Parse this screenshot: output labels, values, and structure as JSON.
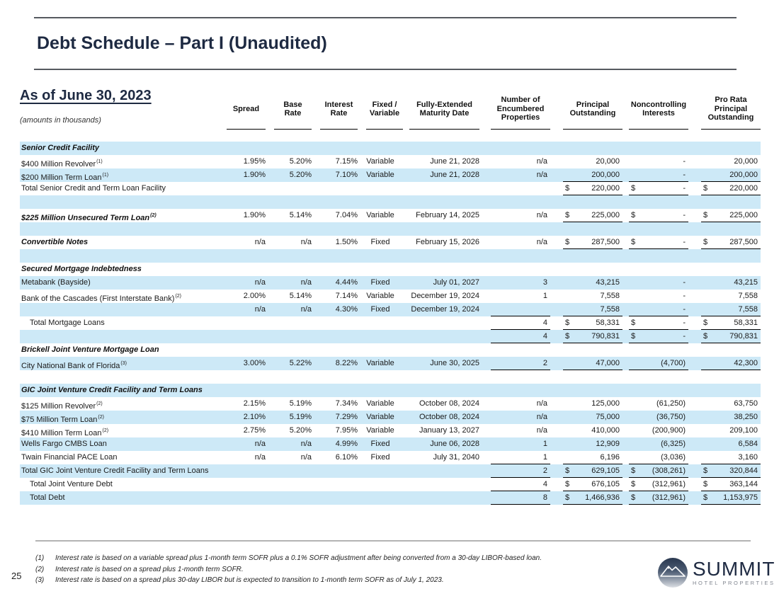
{
  "colors": {
    "row_shade": "#cde9f7",
    "navy": "#1e2a42",
    "rule_dark": "#565a60",
    "rule_light": "#b3b3b3"
  },
  "header": {
    "title": "Debt Schedule – Part I (Unaudited)",
    "as_of": "As of June 30, 2023",
    "amounts_note": "(amounts in thousands)"
  },
  "page_number": "25",
  "logo": {
    "name": "SUMMIT",
    "tagline": "HOTEL PROPERTIES",
    "icon": "mountain-circle-icon"
  },
  "footnotes": [
    {
      "num": "(1)",
      "text": "Interest rate is based on a variable spread plus 1-month term SOFR plus a 0.1% SOFR adjustment after being converted from a 30-day LIBOR-based loan."
    },
    {
      "num": "(2)",
      "text": "Interest rate is based on a spread plus 1-month term SOFR."
    },
    {
      "num": "(3)",
      "text": "Interest rate is based on a spread plus 30-day LIBOR but is expected to transition to 1-month term SOFR as of July 1, 2023."
    }
  ],
  "table": {
    "columns": [
      {
        "key": "spread",
        "width": 55,
        "gap": 0,
        "lines": [
          "Spread"
        ]
      },
      {
        "key": "base",
        "width": 65,
        "gap": 12,
        "lines": [
          "Base",
          "Rate"
        ]
      },
      {
        "key": "interest",
        "width": 65,
        "gap": 12,
        "lines": [
          "Interest",
          "Rate"
        ]
      },
      {
        "key": "fv",
        "width": 64,
        "gap": 12,
        "lines": [
          "Fixed /",
          "Variable"
        ]
      },
      {
        "key": "maturity",
        "width": 116,
        "gap": 9,
        "gapr": 8,
        "lines": [
          "Fully-Extended",
          "Maturity Date"
        ]
      },
      {
        "key": "props",
        "width": 92,
        "gap": 8,
        "lines": [
          "Number of",
          "Encumbered",
          "Properties"
        ]
      },
      {
        "key": "principal",
        "width": 102,
        "gap": 18,
        "lines": [
          "Principal",
          "Outstanding"
        ]
      },
      {
        "key": "nci",
        "width": 93,
        "gap": 9,
        "lines": [
          "Noncontrolling",
          "Interests"
        ]
      },
      {
        "key": "prorata",
        "width": 102,
        "gap": 18,
        "lines": [
          "Pro Rata",
          "Principal",
          "Outstanding"
        ]
      }
    ],
    "rows": [
      {
        "style": "section",
        "shade": true,
        "label": "Senior Credit Facility"
      },
      {
        "style": "normal",
        "label": "$400 Million Revolver",
        "sup": "(1)",
        "cells": {
          "spread": "1.95%",
          "base": "5.20%",
          "interest": "7.15%",
          "fv": "Variable",
          "maturity": "June 21, 2028"
        },
        "boxed": {
          "props": {
            "v": "n/a"
          },
          "principal": {
            "v": "20,000"
          },
          "nci": {
            "v": "-"
          },
          "prorata": {
            "v": "20,000"
          }
        }
      },
      {
        "style": "normal",
        "shade": true,
        "label": "$200 Million Term Loan",
        "sup": "(1)",
        "cells": {
          "spread": "1.90%",
          "base": "5.20%",
          "interest": "7.10%",
          "fv": "Variable",
          "maturity": "June 21, 2028"
        },
        "boxed": {
          "props": {
            "v": "n/a"
          },
          "principal": {
            "v": "200,000"
          },
          "nci": {
            "v": "-"
          },
          "prorata": {
            "v": "200,000"
          }
        },
        "underline": [
          "principal",
          "nci",
          "prorata"
        ]
      },
      {
        "style": "normal",
        "label": "Total Senior Credit and Term Loan Facility",
        "boxed": {
          "principal": {
            "v": "220,000",
            "d": true
          },
          "nci": {
            "v": "-",
            "d": true
          },
          "prorata": {
            "v": "220,000",
            "d": true
          }
        },
        "underline": [
          "principal",
          "nci",
          "prorata"
        ]
      },
      {
        "style": "blank",
        "shade": true
      },
      {
        "style": "bolditalic",
        "label": "$225 Million Unsecured Term Loan",
        "sup": "(2)",
        "cells": {
          "spread": "1.90%",
          "base": "5.14%",
          "interest": "7.04%",
          "fv": "Variable",
          "maturity": "February 14, 2025"
        },
        "boxed": {
          "props": {
            "v": "n/a"
          },
          "principal": {
            "v": "225,000",
            "d": true
          },
          "nci": {
            "v": "-",
            "d": true
          },
          "prorata": {
            "v": "225,000",
            "d": true
          }
        },
        "underline": [
          "principal",
          "nci",
          "prorata"
        ]
      },
      {
        "style": "blank",
        "shade": true
      },
      {
        "style": "bolditalic",
        "label": "Convertible Notes",
        "cells": {
          "spread": "n/a",
          "base": "n/a",
          "interest": "1.50%",
          "fv": "Fixed",
          "maturity": "February 15, 2026"
        },
        "boxed": {
          "props": {
            "v": "n/a"
          },
          "principal": {
            "v": "287,500",
            "d": true
          },
          "nci": {
            "v": "-",
            "d": true
          },
          "prorata": {
            "v": "287,500",
            "d": true
          }
        },
        "underline": [
          "principal",
          "nci",
          "prorata"
        ]
      },
      {
        "style": "blank",
        "shade": true
      },
      {
        "style": "section",
        "label": "Secured Mortgage Indebtedness"
      },
      {
        "style": "normal",
        "shade": true,
        "label": "Metabank (Bayside)",
        "cells": {
          "spread": "n/a",
          "base": "n/a",
          "interest": "4.44%",
          "fv": "Fixed",
          "maturity": "July 01, 2027"
        },
        "boxed": {
          "props": {
            "v": "3"
          },
          "principal": {
            "v": "43,215"
          },
          "nci": {
            "v": "-"
          },
          "prorata": {
            "v": "43,215"
          }
        }
      },
      {
        "style": "normal",
        "label": "Bank of the Cascades (First Interstate Bank)",
        "sup": "(2)",
        "cells": {
          "spread": "2.00%",
          "base": "5.14%",
          "interest": "7.14%",
          "fv": "Variable",
          "maturity": "December 19, 2024"
        },
        "boxed": {
          "props": {
            "v": "1"
          },
          "principal": {
            "v": "7,558"
          },
          "nci": {
            "v": "-"
          },
          "prorata": {
            "v": "7,558"
          }
        }
      },
      {
        "style": "normal",
        "shade": true,
        "label": "",
        "cells": {
          "spread": "n/a",
          "base": "n/a",
          "interest": "4.30%",
          "fv": "Fixed",
          "maturity": "December 19, 2024"
        },
        "boxed": {
          "props": {
            "v": ""
          },
          "principal": {
            "v": "7,558"
          },
          "nci": {
            "v": "-"
          },
          "prorata": {
            "v": "7,558"
          }
        },
        "underline": [
          "props",
          "principal",
          "nci",
          "prorata"
        ]
      },
      {
        "style": "normal",
        "indent": true,
        "label": "Total Mortgage Loans",
        "boxed": {
          "props": {
            "v": "4"
          },
          "principal": {
            "v": "58,331",
            "d": true
          },
          "nci": {
            "v": "-",
            "d": true
          },
          "prorata": {
            "v": "58,331",
            "d": true
          }
        },
        "underline": [
          "props",
          "principal",
          "nci",
          "prorata"
        ]
      },
      {
        "style": "normal",
        "shade": true,
        "label": "",
        "boxed": {
          "props": {
            "v": "4"
          },
          "principal": {
            "v": "790,831",
            "d": true
          },
          "nci": {
            "v": "-",
            "d": true
          },
          "prorata": {
            "v": "790,831",
            "d": true
          }
        },
        "underline": [
          "props",
          "principal",
          "nci",
          "prorata"
        ]
      },
      {
        "style": "section",
        "label": "Brickell Joint Venture Mortgage Loan"
      },
      {
        "style": "normal",
        "shade": true,
        "label": "City National Bank of Florida",
        "sup": "(3)",
        "cells": {
          "spread": "3.00%",
          "base": "5.22%",
          "interest": "8.22%",
          "fv": "Variable",
          "maturity": "June 30, 2025"
        },
        "boxed": {
          "props": {
            "v": "2"
          },
          "principal": {
            "v": "47,000"
          },
          "nci": {
            "v": "(4,700)"
          },
          "prorata": {
            "v": "42,300"
          }
        },
        "underline": [
          "props",
          "principal",
          "nci",
          "prorata"
        ]
      },
      {
        "style": "blank"
      },
      {
        "style": "section",
        "shade": true,
        "label": "GIC Joint Venture Credit Facility and Term Loans"
      },
      {
        "style": "normal",
        "label": "$125 Million Revolver",
        "sup": "(2)",
        "cells": {
          "spread": "2.15%",
          "base": "5.19%",
          "interest": "7.34%",
          "fv": "Variable",
          "maturity": "October 08, 2024"
        },
        "boxed": {
          "props": {
            "v": "n/a"
          },
          "principal": {
            "v": "125,000"
          },
          "nci": {
            "v": "(61,250)"
          },
          "prorata": {
            "v": "63,750"
          }
        }
      },
      {
        "style": "normal",
        "shade": true,
        "label": "$75 Million Term Loan",
        "sup": "(2)",
        "cells": {
          "spread": "2.10%",
          "base": "5.19%",
          "interest": "7.29%",
          "fv": "Variable",
          "maturity": "October 08, 2024"
        },
        "boxed": {
          "props": {
            "v": "n/a"
          },
          "principal": {
            "v": "75,000"
          },
          "nci": {
            "v": "(36,750)"
          },
          "prorata": {
            "v": "38,250"
          }
        }
      },
      {
        "style": "normal",
        "label": "$410 Million Term Loan",
        "sup": "(2)",
        "cells": {
          "spread": "2.75%",
          "base": "5.20%",
          "interest": "7.95%",
          "fv": "Variable",
          "maturity": "January 13, 2027"
        },
        "boxed": {
          "props": {
            "v": "n/a"
          },
          "principal": {
            "v": "410,000"
          },
          "nci": {
            "v": "(200,900)"
          },
          "prorata": {
            "v": "209,100"
          }
        }
      },
      {
        "style": "normal",
        "shade": true,
        "label": "Wells Fargo CMBS Loan",
        "cells": {
          "spread": "n/a",
          "base": "n/a",
          "interest": "4.99%",
          "fv": "Fixed",
          "maturity": "June 06, 2028"
        },
        "boxed": {
          "props": {
            "v": "1"
          },
          "principal": {
            "v": "12,909"
          },
          "nci": {
            "v": "(6,325)"
          },
          "prorata": {
            "v": "6,584"
          }
        }
      },
      {
        "style": "normal",
        "label": "Twain Financial PACE Loan",
        "cells": {
          "spread": "n/a",
          "base": "n/a",
          "interest": "6.10%",
          "fv": "Fixed",
          "maturity": "July 31, 2040"
        },
        "boxed": {
          "props": {
            "v": "1"
          },
          "principal": {
            "v": "6,196"
          },
          "nci": {
            "v": "(3,036)"
          },
          "prorata": {
            "v": "3,160"
          }
        },
        "underline": [
          "props",
          "principal",
          "nci",
          "prorata"
        ]
      },
      {
        "style": "normal",
        "shade": true,
        "label": "Total GIC Joint Venture Credit Facility and Term Loans",
        "boxed": {
          "props": {
            "v": "2"
          },
          "principal": {
            "v": "629,105",
            "d": true
          },
          "nci": {
            "v": "(308,261)",
            "d": true
          },
          "prorata": {
            "v": "320,844",
            "d": true
          }
        },
        "underline": [
          "props",
          "principal",
          "nci",
          "prorata"
        ]
      },
      {
        "style": "normal",
        "indent": true,
        "label": "Total Joint Venture Debt",
        "boxed": {
          "props": {
            "v": "4"
          },
          "principal": {
            "v": "676,105",
            "d": true
          },
          "nci": {
            "v": "(312,961)",
            "d": true
          },
          "prorata": {
            "v": "363,144",
            "d": true
          }
        },
        "underline": [
          "props",
          "principal",
          "nci",
          "prorata"
        ]
      },
      {
        "style": "normal",
        "indent": true,
        "shade": true,
        "label": "Total Debt",
        "boxed": {
          "props": {
            "v": "8"
          },
          "principal": {
            "v": "1,466,936",
            "d": true
          },
          "nci": {
            "v": "(312,961)",
            "d": true
          },
          "prorata": {
            "v": "1,153,975",
            "d": true
          }
        },
        "underline": [
          "props",
          "principal",
          "nci",
          "prorata"
        ]
      }
    ]
  }
}
